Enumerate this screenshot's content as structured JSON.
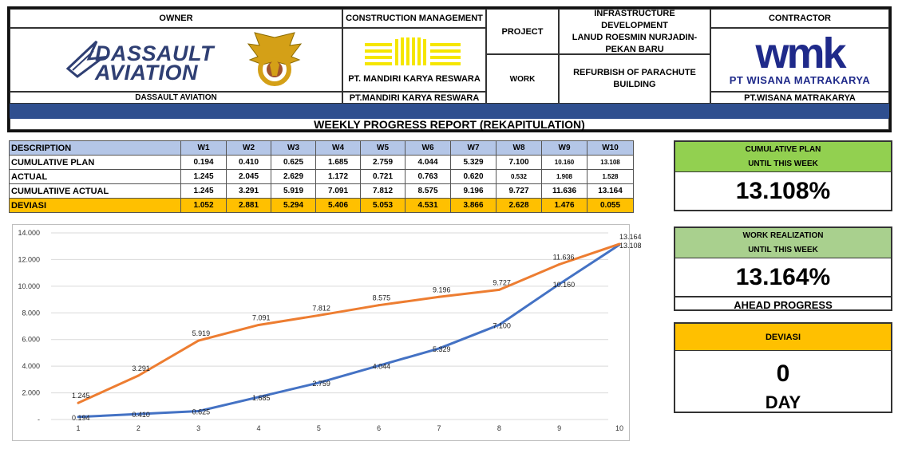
{
  "header": {
    "owner_label": "OWNER",
    "owner_logo_text": [
      "DASSAULT",
      "AVIATION"
    ],
    "owner_name": "DASSAULT AVIATION",
    "cm_label": "CONSTRUCTION MANAGEMENT",
    "cm_logo_text": "PT. MANDIRI KARYA RESWARA",
    "cm_name": "PT.MANDIRI KARYA RESWARA",
    "project_label": "PROJECT",
    "project_value": [
      "INFRASTRUCTURE DEVELOPMENT",
      "LANUD ROESMIN NURJADIN-",
      "PEKAN BARU"
    ],
    "work_label": "WORK",
    "work_value": [
      "REFURBISH OF PARACHUTE",
      "BUILDING"
    ],
    "contractor_label": "CONTRACTOR",
    "contractor_logo_text": "wmk",
    "contractor_logo_sub": "PT WISANA MATRAKARYA",
    "contractor_name": "PT.WISANA MATRAKARYA",
    "report_title": "WEEKLY PROGRESS REPORT (REKAPITULATION)",
    "colors": {
      "blue_band": "#2f4f8f",
      "logo_navy": "#2f3f73",
      "mandiri_yellow": "#f5e600",
      "wmk_navy": "#1f2a8a",
      "emblem_gold": "#d4a017"
    }
  },
  "table": {
    "columns": [
      "DESCRIPTION",
      "W1",
      "W2",
      "W3",
      "W4",
      "W5",
      "W6",
      "W7",
      "W8",
      "W9",
      "W10"
    ],
    "rows": [
      {
        "label": "CUMULATIVE PLAN",
        "values": [
          "0.194",
          "0.410",
          "0.625",
          "1.685",
          "2.759",
          "4.044",
          "5.329",
          "7.100",
          "10.160",
          "13.108"
        ]
      },
      {
        "label": "ACTUAL",
        "values": [
          "1.245",
          "2.045",
          "2.629",
          "1.172",
          "0.721",
          "0.763",
          "0.620",
          "0.532",
          "1.908",
          "1.528"
        ]
      },
      {
        "label": "CUMULATIIVE ACTUAL",
        "values": [
          "1.245",
          "3.291",
          "5.919",
          "7.091",
          "7.812",
          "8.575",
          "9.196",
          "9.727",
          "11.636",
          "13.164"
        ]
      },
      {
        "label": "DEVIASI",
        "values": [
          "1.052",
          "2.881",
          "5.294",
          "5.406",
          "5.053",
          "4.531",
          "3.866",
          "2.628",
          "1.476",
          "0.055"
        ]
      }
    ],
    "colors": {
      "header_bg": "#b4c6e7",
      "deviasi_bg": "#ffc000"
    }
  },
  "summary": {
    "plan": {
      "title": [
        "CUMULATIVE PLAN",
        "UNTIL THIS WEEK"
      ],
      "value": "13.108%",
      "color": "#92d050"
    },
    "realization": {
      "title": [
        "WORK REALIZATION",
        "UNTIL THIS WEEK"
      ],
      "value": "13.164%",
      "status": "AHEAD PROGRESS",
      "color": "#a9d08e"
    },
    "deviasi": {
      "title": "DEVIASI",
      "value": "0",
      "unit": "DAY",
      "color": "#ffc000"
    }
  },
  "chart_data": {
    "type": "line",
    "x": [
      1,
      2,
      3,
      4,
      5,
      6,
      7,
      8,
      9,
      10
    ],
    "ylim": [
      0,
      14
    ],
    "yticks": [
      0,
      2,
      4,
      6,
      8,
      10,
      12,
      14
    ],
    "ytick_labels": [
      "-",
      "2.000",
      "4.000",
      "6.000",
      "8.000",
      "10.000",
      "12.000",
      "14.000"
    ],
    "grid": "horizontal",
    "legend": "none",
    "series": [
      {
        "values": [
          0.194,
          0.41,
          0.625,
          1.685,
          2.759,
          4.044,
          5.329,
          7.1,
          10.16,
          13.108
        ],
        "labels": [
          "0.194",
          "0.410",
          "0.625",
          "1.685",
          "2.759",
          "4.044",
          "5.329",
          "7.100",
          "10.160",
          "13.108"
        ],
        "color": "#4472c4"
      },
      {
        "values": [
          1.245,
          3.291,
          5.919,
          7.091,
          7.812,
          8.575,
          9.196,
          9.727,
          11.636,
          13.164
        ],
        "labels": [
          "1.245",
          "3.291",
          "5.919",
          "7.091",
          "7.812",
          "8.575",
          "9.196",
          "9.727",
          "11.636",
          "13.164"
        ],
        "color": "#ed7d31"
      }
    ]
  }
}
